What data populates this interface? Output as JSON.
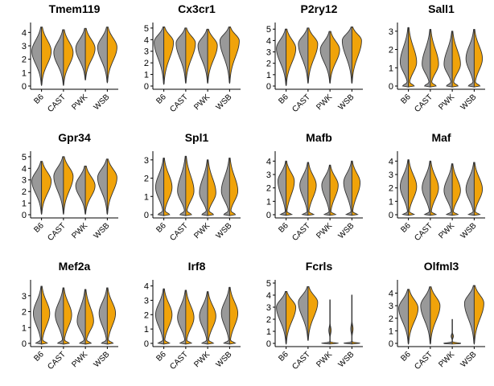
{
  "chart_data": {
    "type": "violin",
    "layout": {
      "rows": 3,
      "cols": 4
    },
    "categories": [
      "B6",
      "CAST",
      "PWK",
      "WSB"
    ],
    "colors": {
      "left_half": "#999999",
      "right_half": "#F0A30A",
      "outline": "#333333"
    },
    "panels": [
      {
        "title": "Tmem119",
        "ylim": [
          0,
          4.5
        ],
        "yticks": [
          0,
          1,
          2,
          3,
          4
        ],
        "violins": [
          {
            "shape": "u",
            "median": 2.6,
            "top": 4.4,
            "bottom": 0.1
          },
          {
            "shape": "u",
            "median": 2.5,
            "top": 4.2,
            "bottom": 0.1
          },
          {
            "shape": "u",
            "median": 2.8,
            "top": 4.3,
            "bottom": 0.5
          },
          {
            "shape": "u",
            "median": 2.9,
            "top": 4.4,
            "bottom": 0.3
          }
        ]
      },
      {
        "title": "Cx3cr1",
        "ylim": [
          0,
          5.2
        ],
        "yticks": [
          0,
          1,
          2,
          3,
          4,
          5
        ],
        "violins": [
          {
            "shape": "u",
            "median": 3.8,
            "top": 5.1,
            "bottom": 0.2
          },
          {
            "shape": "u",
            "median": 3.7,
            "top": 5.0,
            "bottom": 0.3
          },
          {
            "shape": "u",
            "median": 3.5,
            "top": 4.9,
            "bottom": 0.3
          },
          {
            "shape": "u",
            "median": 3.9,
            "top": 5.1,
            "bottom": 0.3
          }
        ]
      },
      {
        "title": "P2ry12",
        "ylim": [
          0,
          5.3
        ],
        "yticks": [
          0,
          1,
          2,
          3,
          4,
          5
        ],
        "violins": [
          {
            "shape": "u",
            "median": 3.3,
            "top": 5.0,
            "bottom": 0.1
          },
          {
            "shape": "u",
            "median": 3.7,
            "top": 5.1,
            "bottom": 0.3
          },
          {
            "shape": "u",
            "median": 3.2,
            "top": 4.8,
            "bottom": 0.3
          },
          {
            "shape": "u",
            "median": 4.0,
            "top": 5.2,
            "bottom": 0.3
          }
        ]
      },
      {
        "title": "Sall1",
        "ylim": [
          0,
          3.3
        ],
        "yticks": [
          0,
          1,
          2,
          3
        ],
        "violins": [
          {
            "shape": "b",
            "median": 1.3,
            "top": 3.2,
            "bottom": 0.0
          },
          {
            "shape": "b",
            "median": 1.2,
            "top": 3.1,
            "bottom": 0.0
          },
          {
            "shape": "b",
            "median": 1.2,
            "top": 3.0,
            "bottom": 0.0
          },
          {
            "shape": "b",
            "median": 1.5,
            "top": 3.1,
            "bottom": 0.0
          }
        ]
      },
      {
        "title": "Gpr34",
        "ylim": [
          0,
          5.2
        ],
        "yticks": [
          0,
          1,
          2,
          3,
          4,
          5
        ],
        "violins": [
          {
            "shape": "u",
            "median": 2.9,
            "top": 4.6,
            "bottom": 0.1
          },
          {
            "shape": "u",
            "median": 3.3,
            "top": 5.0,
            "bottom": 0.1
          },
          {
            "shape": "u",
            "median": 2.5,
            "top": 4.2,
            "bottom": 0.1
          },
          {
            "shape": "u",
            "median": 3.2,
            "top": 4.8,
            "bottom": 0.1
          }
        ]
      },
      {
        "title": "Spl1",
        "ylim": [
          0,
          3.3
        ],
        "yticks": [
          0,
          1,
          2,
          3
        ],
        "violins": [
          {
            "shape": "b",
            "median": 1.5,
            "top": 3.1,
            "bottom": 0.0
          },
          {
            "shape": "b",
            "median": 1.3,
            "top": 3.2,
            "bottom": 0.0
          },
          {
            "shape": "b",
            "median": 1.2,
            "top": 3.0,
            "bottom": 0.0
          },
          {
            "shape": "b",
            "median": 1.3,
            "top": 3.1,
            "bottom": 0.0
          }
        ]
      },
      {
        "title": "Mafb",
        "ylim": [
          0,
          4.5
        ],
        "yticks": [
          0,
          1,
          2,
          3,
          4
        ],
        "violins": [
          {
            "shape": "b",
            "median": 2.5,
            "top": 4.0,
            "bottom": 0.0
          },
          {
            "shape": "b",
            "median": 2.2,
            "top": 3.9,
            "bottom": 0.0
          },
          {
            "shape": "b",
            "median": 2.2,
            "top": 3.7,
            "bottom": 0.0
          },
          {
            "shape": "b",
            "median": 2.4,
            "top": 4.0,
            "bottom": 0.0
          }
        ]
      },
      {
        "title": "Maf",
        "ylim": [
          0,
          4.5
        ],
        "yticks": [
          0,
          1,
          2,
          3,
          4
        ],
        "violins": [
          {
            "shape": "b",
            "median": 2.1,
            "top": 4.1,
            "bottom": 0.0
          },
          {
            "shape": "b",
            "median": 2.0,
            "top": 4.0,
            "bottom": 0.0
          },
          {
            "shape": "b",
            "median": 1.8,
            "top": 3.8,
            "bottom": 0.0
          },
          {
            "shape": "b",
            "median": 1.9,
            "top": 3.9,
            "bottom": 0.0
          }
        ]
      },
      {
        "title": "Mef2a",
        "ylim": [
          0,
          3.8
        ],
        "yticks": [
          0,
          1,
          2,
          3
        ],
        "violins": [
          {
            "shape": "b",
            "median": 1.9,
            "top": 3.6,
            "bottom": 0.0
          },
          {
            "shape": "b",
            "median": 1.8,
            "top": 3.5,
            "bottom": 0.0
          },
          {
            "shape": "b",
            "median": 1.4,
            "top": 3.4,
            "bottom": 0.0
          },
          {
            "shape": "b",
            "median": 1.9,
            "top": 3.5,
            "bottom": 0.0
          }
        ]
      },
      {
        "title": "Irf8",
        "ylim": [
          0,
          4.2
        ],
        "yticks": [
          0,
          1,
          2,
          3,
          4
        ],
        "violins": [
          {
            "shape": "b",
            "median": 2.0,
            "top": 3.8,
            "bottom": 0.0
          },
          {
            "shape": "b",
            "median": 1.8,
            "top": 3.7,
            "bottom": 0.0
          },
          {
            "shape": "b",
            "median": 1.9,
            "top": 3.6,
            "bottom": 0.0
          },
          {
            "shape": "b",
            "median": 2.1,
            "top": 3.9,
            "bottom": 0.0
          }
        ]
      },
      {
        "title": "Fcrls",
        "ylim": [
          0,
          5.0
        ],
        "yticks": [
          0,
          1,
          2,
          3,
          4,
          5
        ],
        "violins": [
          {
            "shape": "u",
            "median": 3.0,
            "top": 4.3,
            "bottom": 0.0
          },
          {
            "shape": "u",
            "median": 3.4,
            "top": 4.7,
            "bottom": 0.3
          },
          {
            "shape": "z",
            "median": 0.0,
            "top": 3.6,
            "bottom": 0.0
          },
          {
            "shape": "z",
            "median": 0.0,
            "top": 4.0,
            "bottom": 0.0
          }
        ]
      },
      {
        "title": "Olfml3",
        "ylim": [
          0,
          4.8
        ],
        "yticks": [
          0,
          1,
          2,
          3,
          4
        ],
        "violins": [
          {
            "shape": "u",
            "median": 2.8,
            "top": 4.3,
            "bottom": 0.0
          },
          {
            "shape": "u",
            "median": 3.0,
            "top": 4.5,
            "bottom": 0.0
          },
          {
            "shape": "z",
            "median": 0.0,
            "top": 1.9,
            "bottom": 0.0
          },
          {
            "shape": "u",
            "median": 3.2,
            "top": 4.6,
            "bottom": 0.0
          }
        ]
      }
    ]
  }
}
